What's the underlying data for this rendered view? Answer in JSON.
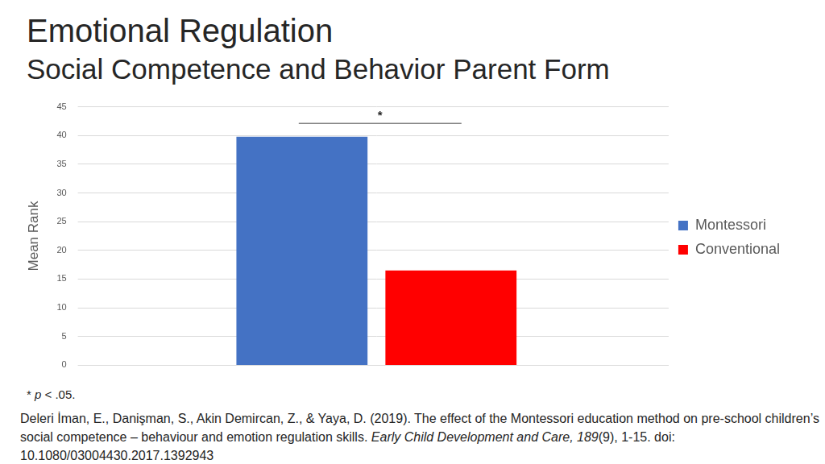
{
  "chart_data": {
    "type": "bar",
    "title": "Emotional Regulation",
    "subtitle": "Social Competence and Behavior Parent Form",
    "y_label": "Mean Rank",
    "categories": [
      null
    ],
    "series": [
      {
        "name": "Montessori",
        "color": "#4472c4",
        "values": [
          39.8
        ]
      },
      {
        "name": "Conventional",
        "color": "#ff0000",
        "values": [
          16.5
        ]
      }
    ],
    "ylim": [
      0,
      45
    ],
    "yticks": [
      0,
      5,
      10,
      15,
      20,
      25,
      30,
      35,
      40,
      45
    ],
    "grid": true,
    "legend": "right",
    "tick_labels": "y",
    "annotation": "*",
    "footnote": [
      "* ",
      "p",
      " < .05."
    ],
    "citation": [
      "Deleri İman, E., Danişman, S., Akin Demircan, Z., & Yaya, D. (2019). The effect of the Montessori education method on pre-school children’s social competence – behaviour and emotion regulation skills. ",
      "Early Child Development and Care, 189",
      "(9), 1-15. doi: 10.1080/03004430.2017.1392943"
    ]
  }
}
